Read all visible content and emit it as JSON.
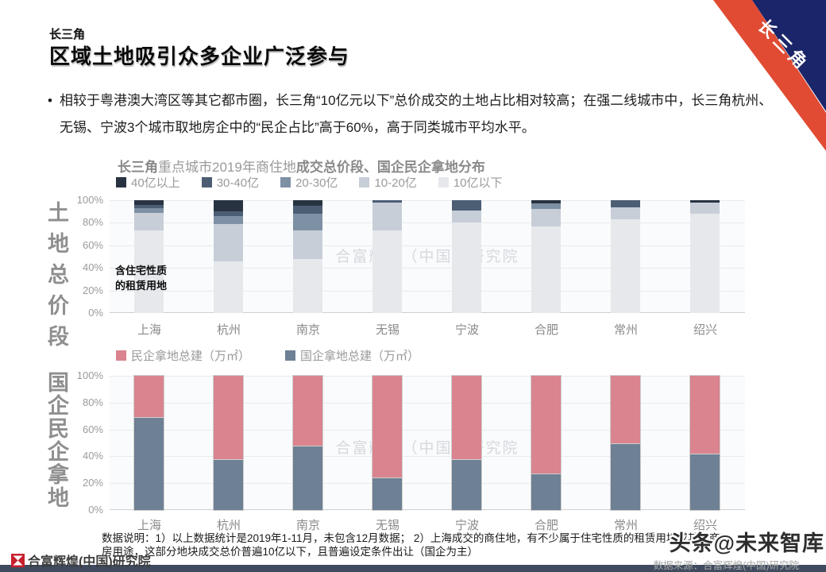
{
  "page": {
    "kicker": "长三角",
    "headline": "区域土地吸引众多企业广泛参与",
    "ribbon_label": "长三角",
    "bullet_dot": "•",
    "bullet_text": "相较于粤港澳大湾区等其它都市圈，长三角“10亿元以下”总价成交的土地占比相对较高；在强二线城市中，长三角杭州、无锡、宁波3个城市取地房企中的“民企占比”高于60%，高于同类城市平均水平。"
  },
  "chart_title": {
    "part1": "长三角",
    "part2": "重点城市2019年商住地",
    "part3": "成交总价段、国企民企拿地分布"
  },
  "annotation": "含住宅性质\n的租赁用地",
  "watermark": "合富辉煌（中国）研究院",
  "chart_data": [
    {
      "type": "bar",
      "stacked": true,
      "title": "长三角重点城市2019年商住地成交总价段",
      "ylabel": "土地总价段",
      "categories": [
        "上海",
        "杭州",
        "南京",
        "无锡",
        "宁波",
        "合肥",
        "常州",
        "绍兴"
      ],
      "yticks": [
        "0%",
        "20%",
        "40%",
        "60%",
        "80%",
        "100%"
      ],
      "ylim": [
        0,
        100
      ],
      "unit": "%",
      "legend_position": "top",
      "grid": true,
      "series": [
        {
          "name": "10亿以下",
          "color": "#e6e8ec",
          "values": [
            73,
            46,
            48,
            73,
            80,
            77,
            83,
            88
          ]
        },
        {
          "name": "10-20亿",
          "color": "#c7ced8",
          "values": [
            16,
            33,
            25,
            25,
            11,
            15,
            11,
            10
          ]
        },
        {
          "name": "20-30亿",
          "color": "#7e90a4",
          "values": [
            4,
            7,
            15,
            0,
            0,
            5,
            0,
            0
          ]
        },
        {
          "name": "30-40亿",
          "color": "#4c5e74",
          "values": [
            3,
            4,
            7,
            2,
            9,
            0,
            6,
            0
          ]
        },
        {
          "name": "40亿以上",
          "color": "#273341",
          "values": [
            4,
            10,
            5,
            0,
            0,
            3,
            0,
            2
          ]
        }
      ]
    },
    {
      "type": "bar",
      "stacked": true,
      "title": "长三角重点城市2019年国企民企拿地分布",
      "ylabel": "国企民企拿地",
      "categories": [
        "上海",
        "杭州",
        "南京",
        "无锡",
        "宁波",
        "合肥",
        "常州",
        "绍兴"
      ],
      "yticks": [
        "0%",
        "20%",
        "40%",
        "60%",
        "80%",
        "100%"
      ],
      "ylim": [
        0,
        100
      ],
      "unit": "%",
      "outlined": true,
      "legend_position": "top",
      "grid": true,
      "series": [
        {
          "name": "国企拿地总建（万㎡）",
          "color": "#6e8093",
          "values": [
            69,
            38,
            48,
            24,
            38,
            27,
            50,
            42
          ]
        },
        {
          "name": "民企拿地总建（万㎡）",
          "color": "#d9848f",
          "values": [
            31,
            62,
            52,
            76,
            62,
            73,
            50,
            58
          ]
        }
      ]
    }
  ],
  "notes": {
    "line1": "数据说明：1）以上数据统计是2019年1-11月，未包含12月数据； 2）上海成交的商住地，有不少属于住宅性质的租赁用地或其他商",
    "line2": "房用途，这部分地块成交总价普遍10亿以下，且普遍设定条件出让（国企为主）"
  },
  "footer": {
    "logo_text": "合富辉煌(中国)研究院",
    "source": "数据来源：合富辉煌(中国)研究院",
    "toutiao_watermark": "头条@未来智库"
  },
  "colors": {
    "ribbon_red": "#e14b33",
    "ribbon_navy": "#1b2569",
    "logo_red": "#c8202f",
    "footer_strip": "#414b5f"
  }
}
